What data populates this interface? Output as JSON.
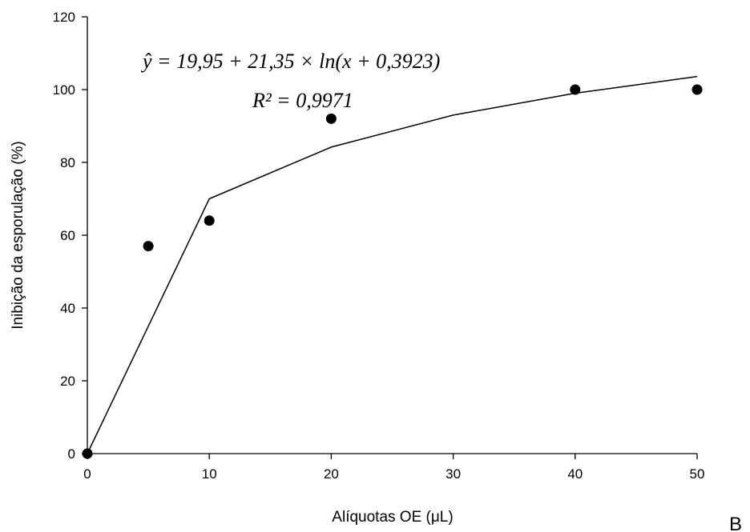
{
  "chart_data": {
    "type": "scatter",
    "xlabel": "Alíquotas OE (μL)",
    "ylabel": "Inibição da esporulação (%)",
    "xlim": [
      0,
      50
    ],
    "ylim": [
      0,
      120
    ],
    "xticks": [
      0,
      10,
      20,
      30,
      40,
      50
    ],
    "yticks": [
      0,
      20,
      40,
      60,
      80,
      100,
      120
    ],
    "grid": false,
    "series": [
      {
        "type": "scatter",
        "x": [
          0,
          5,
          10,
          20,
          40,
          50
        ],
        "y": [
          0,
          57,
          64,
          92,
          100,
          100
        ]
      },
      {
        "type": "line",
        "x": [
          0,
          10,
          20,
          30,
          40,
          50
        ],
        "y": [
          0,
          70,
          84.2,
          93,
          99,
          103.6
        ]
      }
    ],
    "annotations": {
      "equation": "ŷ = 19,95 + 21,35 × ln(x + 0,3923)",
      "r_squared": "R² = 0,9971",
      "panel_letter": "B"
    }
  }
}
